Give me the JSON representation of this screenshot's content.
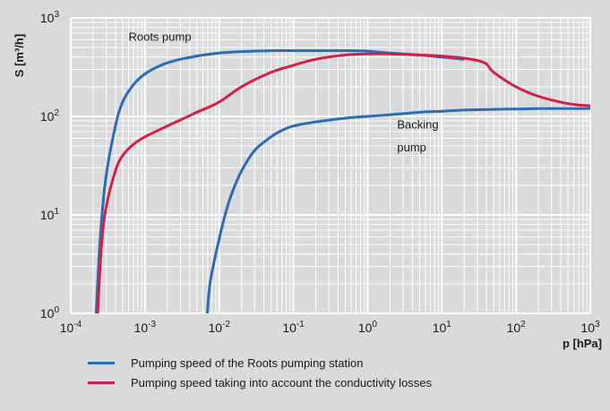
{
  "chart_data": {
    "type": "line",
    "xlabel": "p [hPa]",
    "ylabel": "S [m³/h]",
    "x_scale": "log",
    "y_scale": "log",
    "xlim": [
      0.0001,
      1000
    ],
    "ylim": [
      1,
      1000
    ],
    "grid": true,
    "x_ticks": [
      {
        "value": 0.0001,
        "base": "10",
        "exp": "-4"
      },
      {
        "value": 0.001,
        "base": "10",
        "exp": "-3"
      },
      {
        "value": 0.01,
        "base": "10",
        "exp": "-2"
      },
      {
        "value": 0.1,
        "base": "10",
        "exp": "-1"
      },
      {
        "value": 1,
        "base": "10",
        "exp": "0"
      },
      {
        "value": 10,
        "base": "10",
        "exp": "1"
      },
      {
        "value": 100,
        "base": "10",
        "exp": "2"
      },
      {
        "value": 1000,
        "base": "10",
        "exp": "3"
      }
    ],
    "y_ticks": [
      {
        "value": 1,
        "base": "10",
        "exp": "0"
      },
      {
        "value": 10,
        "base": "10",
        "exp": "1"
      },
      {
        "value": 100,
        "base": "10",
        "exp": "2"
      },
      {
        "value": 1000,
        "base": "10",
        "exp": "3"
      }
    ],
    "annotations": [
      {
        "text": "Roots pump",
        "x": 0.0006,
        "y": 640
      },
      {
        "text": "Backing",
        "x": 2.5,
        "y": 82
      },
      {
        "text": "pump",
        "x": 2.5,
        "y": 48
      }
    ],
    "series": [
      {
        "name": "Pumping speed of the Roots pumping station",
        "color": "#2a6db5",
        "x": [
          0.00022,
          0.00025,
          0.0003,
          0.0004,
          0.0005,
          0.0007,
          0.001,
          0.0015,
          0.002,
          0.003,
          0.005,
          0.01,
          0.02,
          0.05,
          0.1,
          0.2,
          0.5,
          1,
          2,
          5,
          10,
          20
        ],
        "y": [
          1,
          6,
          25,
          80,
          140,
          210,
          270,
          320,
          350,
          380,
          410,
          440,
          455,
          465,
          465,
          465,
          465,
          460,
          440,
          420,
          400,
          380
        ]
      },
      {
        "name": "Pumping speed taking into account the conductivity losses",
        "color": "#d41f48",
        "x": [
          0.00023,
          0.00026,
          0.0003,
          0.0004,
          0.0005,
          0.0007,
          0.001,
          0.0015,
          0.002,
          0.003,
          0.005,
          0.01,
          0.02,
          0.05,
          0.1,
          0.2,
          0.5,
          1,
          2,
          5,
          10,
          20,
          30,
          40,
          50,
          100,
          200,
          500,
          1000
        ],
        "y": [
          1,
          5,
          12,
          28,
          40,
          52,
          62,
          72,
          80,
          92,
          110,
          140,
          200,
          280,
          330,
          380,
          420,
          430,
          430,
          420,
          410,
          390,
          370,
          340,
          280,
          200,
          160,
          135,
          128
        ]
      },
      {
        "name": "Backing pump",
        "color": "#2a6db5",
        "x": [
          0.0069,
          0.0075,
          0.009,
          0.012,
          0.015,
          0.02,
          0.03,
          0.05,
          0.07,
          0.1,
          0.2,
          0.5,
          1,
          2,
          5,
          10,
          20,
          50,
          100,
          200,
          500,
          1000
        ],
        "y": [
          1,
          2,
          4,
          10,
          17,
          28,
          45,
          62,
          72,
          80,
          88,
          96,
          100,
          104,
          110,
          113,
          116,
          118,
          119,
          120,
          120,
          120
        ]
      }
    ],
    "legend": [
      {
        "label": "Pumping speed of the Roots pumping station",
        "color": "#2a6db5"
      },
      {
        "label": "Pumping speed taking into account the conductivity losses",
        "color": "#d41f48"
      }
    ]
  }
}
